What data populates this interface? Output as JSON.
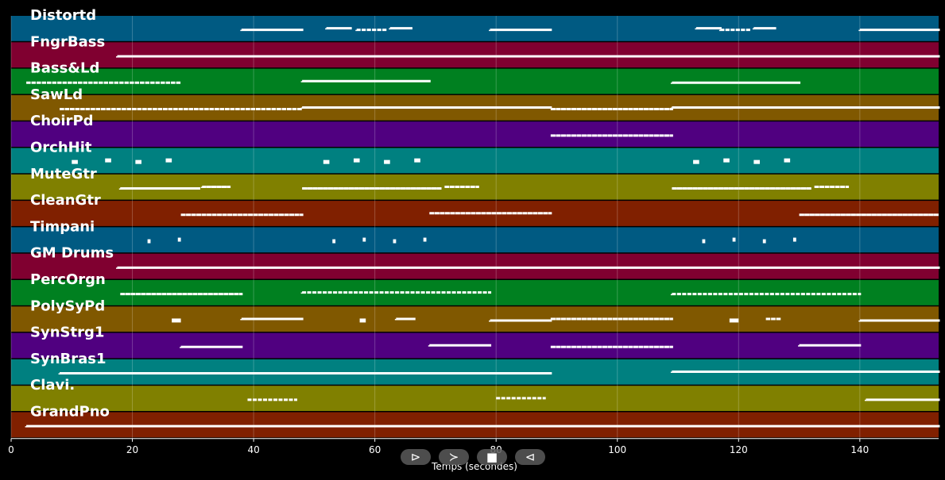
{
  "chart_data": {
    "type": "piano-roll",
    "xlabel": "Temps (secondes)",
    "xlim": [
      0,
      153
    ],
    "xticks": [
      0,
      20,
      40,
      60,
      80,
      100,
      120,
      140
    ],
    "tracks": [
      {
        "name": "Distortd",
        "color": "#005a82",
        "segments": [
          [
            38,
            48
          ],
          [
            52,
            56
          ],
          [
            57,
            62
          ],
          [
            62.5,
            66
          ],
          [
            79,
            89
          ],
          [
            113,
            117
          ],
          [
            117,
            122
          ],
          [
            122.5,
            126
          ],
          [
            140,
            153
          ]
        ]
      },
      {
        "name": "FngrBass",
        "color": "#800030",
        "segments": [
          [
            17.5,
            153
          ]
        ]
      },
      {
        "name": "Bass&Ld",
        "color": "#008020",
        "segments": [
          [
            2.5,
            28
          ],
          [
            48,
            69
          ],
          [
            109,
            130
          ]
        ]
      },
      {
        "name": "SawLd",
        "color": "#805800",
        "segments": [
          [
            8,
            48
          ],
          [
            48,
            89
          ],
          [
            89,
            109
          ],
          [
            109,
            153
          ]
        ]
      },
      {
        "name": "ChoirPd",
        "color": "#500080",
        "segments": [
          [
            89,
            109
          ]
        ]
      },
      {
        "name": "OrchHit",
        "color": "#008080",
        "segments": [
          [
            10,
            11
          ],
          [
            15.5,
            16.5
          ],
          [
            20.5,
            21.5
          ],
          [
            25.5,
            26.5
          ],
          [
            51.5,
            52.5
          ],
          [
            56.5,
            57.5
          ],
          [
            61.5,
            62.5
          ],
          [
            66.5,
            67.5
          ],
          [
            112.5,
            113.5
          ],
          [
            117.5,
            118.5
          ],
          [
            122.5,
            123.5
          ],
          [
            127.5,
            128.5
          ]
        ]
      },
      {
        "name": "MuteGtr",
        "color": "#808000",
        "segments": [
          [
            18,
            31
          ],
          [
            31.5,
            36
          ],
          [
            48,
            71
          ],
          [
            71.5,
            77
          ],
          [
            109,
            132
          ],
          [
            132.5,
            138
          ]
        ]
      },
      {
        "name": "CleanGtr",
        "color": "#802000",
        "segments": [
          [
            28,
            48
          ],
          [
            69,
            89
          ],
          [
            130,
            153
          ]
        ]
      },
      {
        "name": "Timpani",
        "color": "#005a82",
        "segments": [
          [
            22.5,
            23
          ],
          [
            27.5,
            28
          ],
          [
            53,
            53.5
          ],
          [
            58,
            58.5
          ],
          [
            63,
            63.5
          ],
          [
            68,
            68.5
          ],
          [
            114,
            114.5
          ],
          [
            119,
            119.5
          ],
          [
            124,
            124.5
          ],
          [
            129,
            129.5
          ]
        ]
      },
      {
        "name": "GM Drums",
        "color": "#800030",
        "segments": [
          [
            17.5,
            153
          ]
        ]
      },
      {
        "name": "PercOrgn",
        "color": "#008020",
        "segments": [
          [
            18,
            38
          ],
          [
            48,
            79
          ],
          [
            109,
            140
          ]
        ]
      },
      {
        "name": "PolySyPd",
        "color": "#805800",
        "segments": [
          [
            26.5,
            28
          ],
          [
            38,
            48
          ],
          [
            57.5,
            58.5
          ],
          [
            63.5,
            66.5
          ],
          [
            79,
            89
          ],
          [
            89,
            109
          ],
          [
            118.5,
            120
          ],
          [
            124.5,
            127
          ],
          [
            140,
            153
          ]
        ]
      },
      {
        "name": "SynStrg1",
        "color": "#500080",
        "segments": [
          [
            28,
            38
          ],
          [
            69,
            79
          ],
          [
            89,
            109
          ],
          [
            130,
            140
          ]
        ]
      },
      {
        "name": "SynBras1",
        "color": "#008080",
        "segments": [
          [
            8,
            89
          ],
          [
            109,
            153
          ]
        ]
      },
      {
        "name": "Clavi.",
        "color": "#808000",
        "segments": [
          [
            39,
            47
          ],
          [
            80,
            88
          ],
          [
            141,
            153
          ]
        ]
      },
      {
        "name": "GrandPno",
        "color": "#802000",
        "segments": [
          [
            2.5,
            153
          ]
        ]
      }
    ]
  },
  "controls": {
    "play": "⊳",
    "forward": "≻",
    "stop": "■",
    "back": "⊲"
  }
}
